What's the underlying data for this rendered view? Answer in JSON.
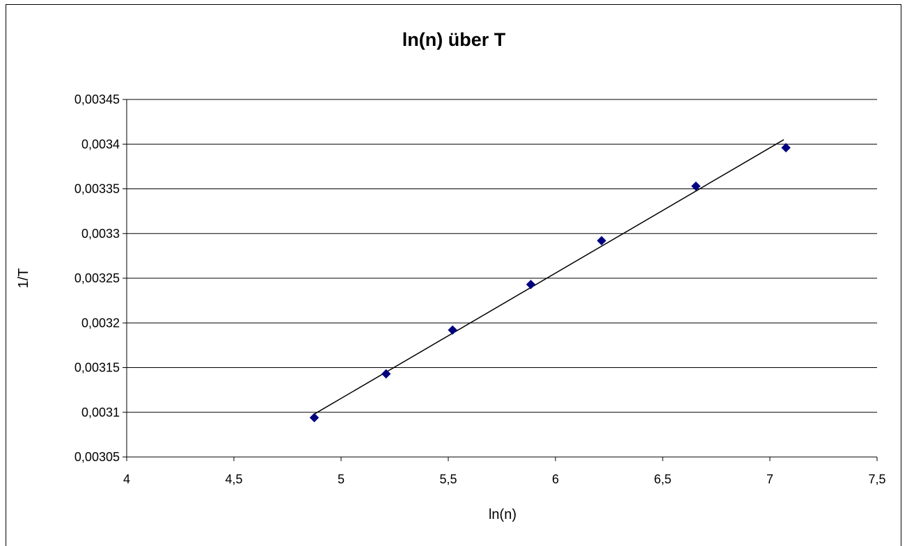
{
  "chart_data": {
    "type": "scatter",
    "title": "ln(n) über T",
    "xlabel": "ln(n)",
    "ylabel": "1/T",
    "xlim": [
      4,
      7.5
    ],
    "ylim": [
      0.00305,
      0.00345
    ],
    "x_ticks": [
      "4",
      "4,5",
      "5",
      "5,5",
      "6",
      "6,5",
      "7",
      "7,5"
    ],
    "y_ticks": [
      "0,00305",
      "0,0031",
      "0,00315",
      "0,0032",
      "0,00325",
      "0,0033",
      "0,00335",
      "0,0034",
      "0,00345"
    ],
    "grid": "horizontal",
    "legend": "none",
    "series": [
      {
        "points": [
          {
            "x": 4.875,
            "y": 0.003094
          },
          {
            "x": 5.21,
            "y": 0.003143
          },
          {
            "x": 5.52,
            "y": 0.003192
          },
          {
            "x": 5.885,
            "y": 0.003243
          },
          {
            "x": 6.215,
            "y": 0.003292
          },
          {
            "x": 6.655,
            "y": 0.003353
          },
          {
            "x": 7.075,
            "y": 0.003396
          }
        ],
        "color": "#000080",
        "marker": "diamond"
      }
    ],
    "trendline": {
      "x": [
        4.875,
        7.065
      ],
      "y": [
        0.003098,
        0.003405
      ],
      "color": "#000000"
    }
  }
}
